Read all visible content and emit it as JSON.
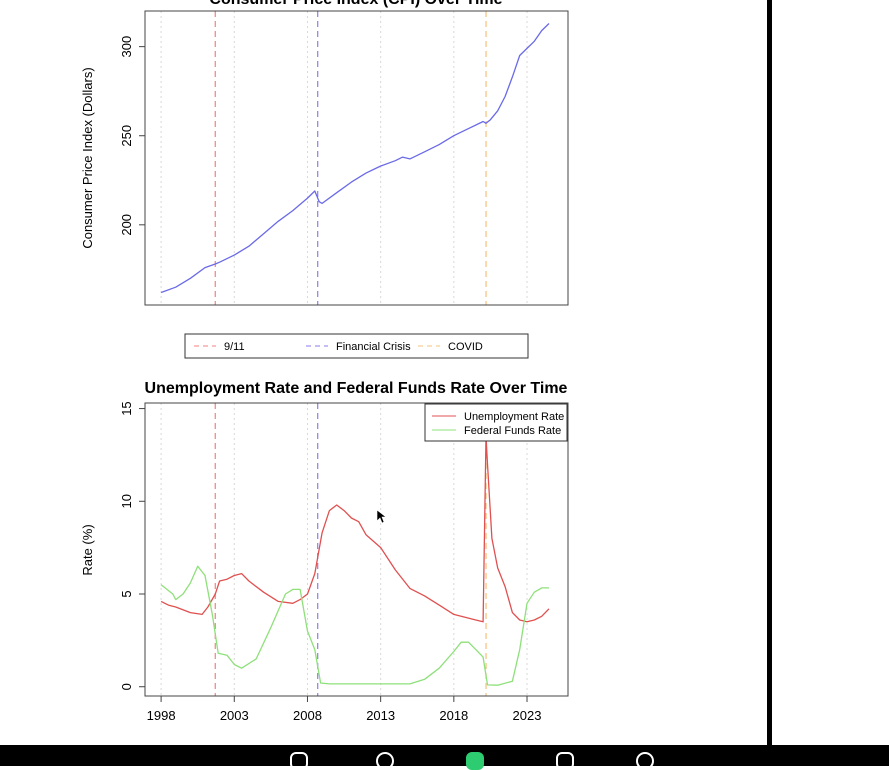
{
  "chart_data": [
    {
      "type": "line",
      "title": "Consumer Price Index (CPI) Over Time",
      "ylabel": "Consumer Price Index (Dollars)",
      "xlim": [
        1996.9,
        2025.8
      ],
      "ylim": [
        155,
        320
      ],
      "yticks": [
        "200",
        "250",
        "300"
      ],
      "ytick_values": [
        200,
        250,
        300
      ],
      "grid": "vertical dotted",
      "events": [
        {
          "name": "9/11",
          "x": 2001.7,
          "color": "#f08080"
        },
        {
          "name": "Financial Crisis",
          "x": 2008.7,
          "color": "#8e7be8"
        },
        {
          "name": "COVID",
          "x": 2020.2,
          "color": "#f5c07a"
        }
      ],
      "series": [
        {
          "name": "CPI",
          "color": "#6a6ae8",
          "x": [
            1998.0,
            1999.0,
            2000.0,
            2001.0,
            2001.7,
            2002.0,
            2003.0,
            2004.0,
            2005.0,
            2006.0,
            2007.0,
            2008.0,
            2008.5,
            2008.8,
            2009.0,
            2010.0,
            2011.0,
            2012.0,
            2013.0,
            2014.0,
            2014.5,
            2015.0,
            2016.0,
            2017.0,
            2018.0,
            2019.0,
            2020.0,
            2020.2,
            2020.5,
            2021.0,
            2021.5,
            2022.0,
            2022.5,
            2023.0,
            2023.5,
            2024.0,
            2024.5
          ],
          "y": [
            162,
            165,
            170,
            176,
            178,
            179,
            183,
            188,
            195,
            202,
            208,
            215,
            219,
            213,
            212,
            218,
            224,
            229,
            233,
            236,
            238,
            237,
            241,
            245,
            250,
            254,
            258,
            257,
            259,
            264,
            272,
            283,
            295,
            299,
            303,
            309,
            313
          ]
        }
      ]
    },
    {
      "type": "line",
      "title": "Unemployment Rate and Federal Funds Rate Over Time",
      "ylabel": "Rate (%)",
      "xlim": [
        1996.9,
        2025.8
      ],
      "ylim": [
        -0.5,
        15.3
      ],
      "xticks": [
        "1998",
        "2003",
        "2008",
        "2013",
        "2018",
        "2023"
      ],
      "xtick_values": [
        1998,
        2003,
        2008,
        2013,
        2018,
        2023
      ],
      "yticks": [
        "0",
        "5",
        "10",
        "15"
      ],
      "ytick_values": [
        0,
        5,
        10,
        15
      ],
      "grid": "vertical dotted",
      "legend_position": "top-right",
      "events": [
        {
          "x": 2001.7,
          "color": "#f08080"
        },
        {
          "x": 2008.7,
          "color": "#8e7be8"
        },
        {
          "x": 2020.2,
          "color": "#f5c07a"
        }
      ],
      "series": [
        {
          "name": "Unemployment Rate",
          "color": "#e05050",
          "x": [
            1998.0,
            1998.5,
            1999.0,
            2000.0,
            2000.8,
            2001.2,
            2001.7,
            2002.0,
            2002.5,
            2003.0,
            2003.5,
            2004.0,
            2005.0,
            2006.0,
            2007.0,
            2007.5,
            2008.0,
            2008.5,
            2009.0,
            2009.5,
            2010.0,
            2010.5,
            2011.0,
            2011.5,
            2012.0,
            2013.0,
            2014.0,
            2015.0,
            2016.0,
            2017.0,
            2018.0,
            2019.0,
            2019.5,
            2020.0,
            2020.2,
            2020.3,
            2020.6,
            2021.0,
            2021.5,
            2022.0,
            2022.5,
            2023.0,
            2023.5,
            2024.0,
            2024.5
          ],
          "y": [
            4.6,
            4.4,
            4.3,
            4.0,
            3.9,
            4.3,
            5.0,
            5.7,
            5.8,
            6.0,
            6.1,
            5.7,
            5.1,
            4.6,
            4.5,
            4.7,
            5.0,
            6.1,
            8.3,
            9.5,
            9.8,
            9.5,
            9.1,
            8.9,
            8.2,
            7.5,
            6.3,
            5.3,
            4.9,
            4.4,
            3.9,
            3.7,
            3.6,
            3.5,
            13.5,
            12.0,
            8.0,
            6.4,
            5.4,
            4.0,
            3.6,
            3.5,
            3.6,
            3.8,
            4.2
          ]
        },
        {
          "name": "Federal Funds Rate",
          "color": "#8ee07a",
          "x": [
            1998.0,
            1998.8,
            1999.0,
            1999.5,
            2000.0,
            2000.5,
            2001.0,
            2001.5,
            2001.9,
            2002.5,
            2003.0,
            2003.5,
            2004.5,
            2005.5,
            2006.5,
            2007.0,
            2007.5,
            2008.0,
            2008.5,
            2008.9,
            2009.5,
            2010.0,
            2012.0,
            2015.0,
            2016.0,
            2017.0,
            2018.0,
            2018.5,
            2019.0,
            2019.5,
            2020.0,
            2020.3,
            2021.0,
            2022.0,
            2022.5,
            2023.0,
            2023.5,
            2024.0,
            2024.5
          ],
          "y": [
            5.5,
            5.0,
            4.7,
            5.0,
            5.6,
            6.5,
            6.0,
            3.9,
            1.8,
            1.7,
            1.2,
            1.0,
            1.5,
            3.2,
            5.0,
            5.25,
            5.25,
            3.0,
            2.0,
            0.2,
            0.15,
            0.15,
            0.15,
            0.15,
            0.4,
            1.0,
            1.9,
            2.4,
            2.4,
            2.0,
            1.6,
            0.1,
            0.08,
            0.3,
            2.0,
            4.5,
            5.1,
            5.33,
            5.33
          ]
        }
      ]
    }
  ]
}
